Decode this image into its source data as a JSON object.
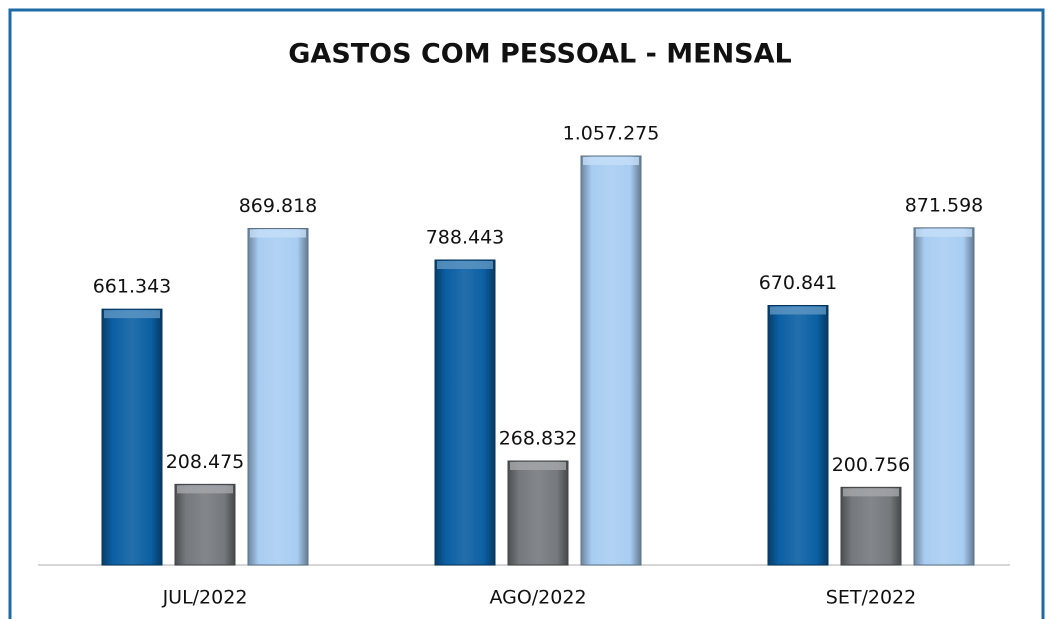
{
  "chart_data": {
    "type": "bar",
    "title": "GASTOS COM PESSOAL - MENSAL",
    "categories": [
      "JUL/2022",
      "AGO/2022",
      "SET/2022"
    ],
    "series": [
      {
        "color": "#0b5fa3",
        "values": [
          661343,
          788443,
          670841
        ],
        "value_labels": [
          "661.343",
          "788.443",
          "670.841"
        ]
      },
      {
        "color": "#75797d",
        "values": [
          208475,
          268832,
          200756
        ],
        "value_labels": [
          "208.475",
          "268.832",
          "200.756"
        ]
      },
      {
        "color": "#a8cdf2",
        "values": [
          869818,
          1057275,
          871598
        ],
        "value_labels": [
          "869.818",
          "1.057.275",
          "871.598"
        ]
      }
    ]
  }
}
